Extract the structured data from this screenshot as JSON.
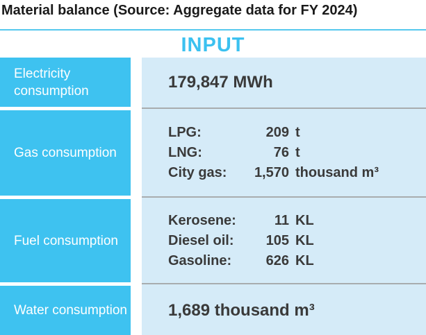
{
  "title": "Material balance (Source: Aggregate data for FY 2024)",
  "header": {
    "label": "INPUT"
  },
  "colors": {
    "accent_cyan": "#3BC1F0",
    "label_column_bg": "#3EC2F0",
    "value_column_bg": "#D5EBF8",
    "top_rule": "#55C8EE",
    "divider_gray": "#A8ACAE",
    "value_text": "#3A3A3A",
    "title_text": "#1A1A1A"
  },
  "rows": [
    {
      "label": "Electricity consumption",
      "value": "179,847 MWh"
    },
    {
      "label": "Gas consumption",
      "items": [
        {
          "name": "LPG:",
          "value": "209",
          "unit": "t"
        },
        {
          "name": "LNG:",
          "value": "76",
          "unit": "t"
        },
        {
          "name": "City gas:",
          "value": "1,570",
          "unit": "thousand m³"
        }
      ]
    },
    {
      "label": "Fuel consumption",
      "items": [
        {
          "name": "Kerosene:",
          "value": "11",
          "unit": "KL"
        },
        {
          "name": "Diesel oil:",
          "value": "105",
          "unit": "KL"
        },
        {
          "name": "Gasoline:",
          "value": "626",
          "unit": "KL"
        }
      ]
    },
    {
      "label": "Water consumption",
      "value": "1,689 thousand m³"
    }
  ],
  "chart_data": {
    "type": "table",
    "title": "Material balance (Source: Aggregate data for FY 2024)",
    "section": "INPUT",
    "rows": [
      {
        "category": "Electricity consumption",
        "entries": [
          {
            "item": "Electricity",
            "value": 179847,
            "unit": "MWh"
          }
        ]
      },
      {
        "category": "Gas consumption",
        "entries": [
          {
            "item": "LPG",
            "value": 209,
            "unit": "t"
          },
          {
            "item": "LNG",
            "value": 76,
            "unit": "t"
          },
          {
            "item": "City gas",
            "value": 1570,
            "unit": "thousand m³"
          }
        ]
      },
      {
        "category": "Fuel consumption",
        "entries": [
          {
            "item": "Kerosene",
            "value": 11,
            "unit": "KL"
          },
          {
            "item": "Diesel oil",
            "value": 105,
            "unit": "KL"
          },
          {
            "item": "Gasoline",
            "value": 626,
            "unit": "KL"
          }
        ]
      },
      {
        "category": "Water consumption",
        "entries": [
          {
            "item": "Water",
            "value": 1689,
            "unit": "thousand m³"
          }
        ]
      }
    ]
  }
}
